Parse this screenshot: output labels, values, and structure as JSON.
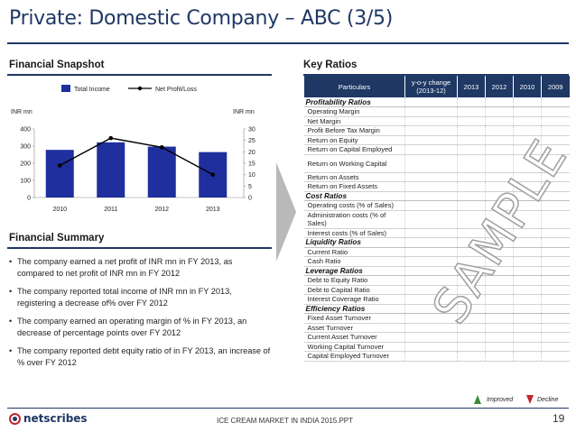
{
  "title": "Private: Domestic Company – ABC (3/5)",
  "snapshot_heading": "Financial Snapshot",
  "ratios_heading": "Key Ratios",
  "summary_heading": "Financial Summary",
  "chart_data": {
    "type": "bar",
    "categories": [
      "2010",
      "2011",
      "2012",
      "2013"
    ],
    "series": [
      {
        "name": "Total Income",
        "kind": "bar",
        "axis": "left",
        "values": [
          278,
          322,
          297,
          265
        ],
        "color": "#1f2f9e"
      },
      {
        "name": "Net Profit/Loss",
        "kind": "line",
        "axis": "right",
        "values": [
          14,
          26,
          22,
          10
        ],
        "color": "#000000"
      }
    ],
    "ylabel": "INR mn",
    "y2label": "INR mn",
    "ylim": [
      0,
      400
    ],
    "y2lim": [
      0,
      30
    ],
    "yticks": [
      "0",
      "100",
      "200",
      "300",
      "400"
    ],
    "y2ticks": [
      "0",
      "5",
      "10",
      "15",
      "20",
      "25",
      "30"
    ],
    "legend_position": "top"
  },
  "summary_items": [
    "The company earned a net profit of INR mn in FY 2013, as compared to net profit of INR mn in FY 2012",
    "The company reported total income of INR mn in FY 2013, registering a decrease of% over FY 2012",
    "The company earned an operating margin of % in FY 2013, an decrease of percentage points over FY 2012",
    "The company reported debt equity ratio of in FY 2013, an increase of % over FY 2012"
  ],
  "table": {
    "headers": [
      "Particulars",
      "y-o-y change (2013-12)",
      "2013",
      "2012",
      "2010",
      "2009"
    ],
    "groups": [
      {
        "category": "Profitability Ratios",
        "items": [
          "Operating Margin",
          "Net Margin",
          "Profit Before Tax Margin",
          "Return on Equity",
          "Return on Capital Employed",
          "Return on Working Capital",
          "Return on Assets",
          "Return on Fixed Assets"
        ]
      },
      {
        "category": "Cost Ratios",
        "items": [
          "Operating costs (% of Sales)",
          "Administration costs (% of Sales)",
          "Interest costs (% of Sales)"
        ]
      },
      {
        "category": "Liquidity Ratios",
        "items": [
          "Current Ratio",
          "Cash Ratio"
        ]
      },
      {
        "category": "Leverage Ratios",
        "items": [
          "Debt to Equity Ratio",
          "Debt to Capital Ratio",
          "Interest Coverage Ratio"
        ]
      },
      {
        "category": "Efficiency Ratios",
        "items": [
          "Fixed Asset Turnover",
          "Asset Turnover",
          "Current Asset Turnover",
          "Working Capital Turnover",
          "Capital Employed Turnover"
        ]
      }
    ]
  },
  "watermark": "SAMPLE",
  "legend": {
    "improved": "Improved",
    "decline": "Decline"
  },
  "footer": {
    "logo": "netscribes",
    "center": "ICE CREAM MARKET IN INDIA 2015.PPT",
    "page": "19"
  }
}
